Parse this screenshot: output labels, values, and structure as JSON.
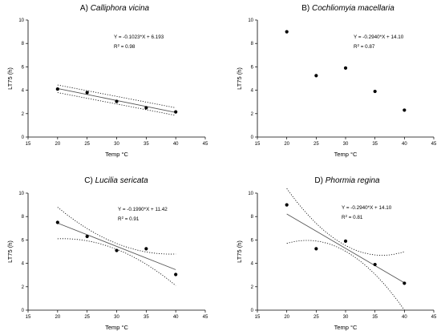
{
  "chart_data": [
    {
      "type": "scatter",
      "panel": "A)",
      "species": "Calliphora vicina",
      "xlabel": "Temp °C",
      "ylabel": "LT75 (h)",
      "xlim": [
        15,
        45
      ],
      "ylim": [
        0,
        10
      ],
      "xticks": [
        "15",
        "20",
        "25",
        "30",
        "35",
        "40",
        "45"
      ],
      "yticks": [
        "0",
        "2",
        "4",
        "6",
        "8",
        "10"
      ],
      "x": [
        20,
        25,
        30,
        35,
        40
      ],
      "y": [
        4.1,
        3.8,
        3.05,
        2.5,
        2.15
      ],
      "equation": "Y = -0.1023*X + 6.193",
      "r2_label": "R",
      "r2_value": " = 0.98",
      "fit": {
        "slope": -0.1023,
        "intercept": 6.193
      },
      "ci": {
        "upper": [
          4.45,
          2.5
        ],
        "lower": [
          3.8,
          1.85
        ],
        "style": "straight"
      }
    },
    {
      "type": "scatter",
      "panel": "B)",
      "species": "Cochliomyia macellaria",
      "xlabel": "Temp °C",
      "ylabel": "LT75 (h)",
      "xlim": [
        15,
        45
      ],
      "ylim": [
        0,
        10
      ],
      "xticks": [
        "15",
        "20",
        "25",
        "30",
        "35",
        "40",
        "45"
      ],
      "yticks": [
        "0",
        "2",
        "4",
        "6",
        "8",
        "10"
      ],
      "x": [
        20,
        25,
        30,
        35,
        40
      ],
      "y": [
        9.0,
        5.25,
        5.9,
        3.9,
        2.3
      ],
      "equation": "Y = -0.2940*X + 14.10",
      "r2_label": "R",
      "r2_value": " = 0.87"
    },
    {
      "type": "scatter",
      "panel": "C)",
      "species": "Lucilia sericata",
      "xlabel": "Temp °C",
      "ylabel": "LT75 (h)",
      "xlim": [
        15,
        45
      ],
      "ylim": [
        0,
        10
      ],
      "xticks": [
        "15",
        "20",
        "25",
        "30",
        "35",
        "40",
        "45"
      ],
      "yticks": [
        "0",
        "2",
        "4",
        "6",
        "8",
        "10"
      ],
      "x": [
        20,
        25,
        30,
        35,
        40
      ],
      "y": [
        7.5,
        6.3,
        5.1,
        5.25,
        3.05
      ],
      "equation": "Y = -0.1990*X + 11.42",
      "r2_label": "R",
      "r2_value": " = 0.91",
      "fit": {
        "slope": -0.199,
        "intercept": 11.42
      },
      "ci": {
        "upper": [
          8.8,
          4.8
        ],
        "lower": [
          6.1,
          2.1
        ],
        "style": "curved"
      }
    },
    {
      "type": "scatter",
      "panel": "D)",
      "species": "Phormia regina",
      "xlabel": "Temp °C",
      "ylabel": "LT75 (h)",
      "xlim": [
        15,
        45
      ],
      "ylim": [
        0,
        10
      ],
      "xticks": [
        "15",
        "20",
        "25",
        "30",
        "35",
        "40",
        "45"
      ],
      "yticks": [
        "0",
        "2",
        "4",
        "6",
        "8",
        "10"
      ],
      "x": [
        20,
        25,
        30,
        35,
        40
      ],
      "y": [
        9.0,
        5.25,
        5.9,
        3.9,
        2.3
      ],
      "equation": "Y = -0.2940*X + 14.10",
      "r2_label": "R",
      "r2_value": " = 0.81",
      "fit": {
        "slope": -0.294,
        "intercept": 14.1
      },
      "ci": {
        "upper": [
          10.4,
          5.0
        ],
        "lower": [
          5.7,
          0.0
        ],
        "style": "curved"
      }
    }
  ]
}
